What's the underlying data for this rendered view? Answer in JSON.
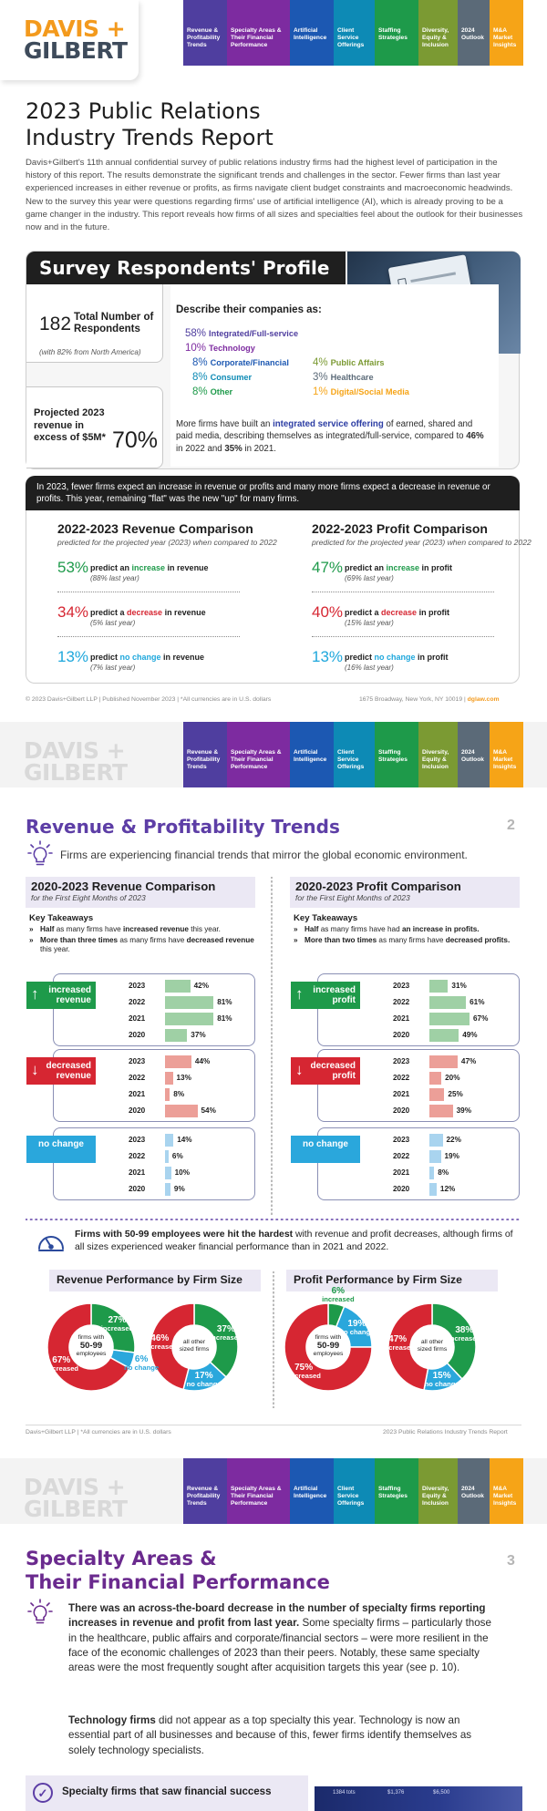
{
  "nav": {
    "logo_line1": "DAVIS +",
    "logo_line2": "GILBERT",
    "tabs": [
      "Revenue & Profitability Trends",
      "Specialty Areas & Their Financial Performance",
      "Artificial Intelligence",
      "Client Service Offerings",
      "Staffing Strategies",
      "Diversity, Equity & Inclusion",
      "2024 Outlook",
      "M&A Market Insights"
    ]
  },
  "page1": {
    "title_line1": "2023 Public Relations",
    "title_line2": "Industry Trends Report",
    "intro": "Davis+Gilbert's 11th annual confidential survey of public relations industry firms had the highest level of participation in the history of this report. The results demonstrate the significant trends and challenges in the sector. Fewer firms than last year experienced increases in either revenue or profits, as firms navigate client budget constraints and macroeconomic headwinds. New to the survey this year were questions regarding firms' use of artificial intelligence (AI), which is already proving to be a game changer in the industry. This report reveals how firms of all sizes and specialties feel about the outlook for their businesses now and in the future.",
    "profile_title": "Survey Respondents' Profile",
    "respondents_num": "182",
    "respondents_label": "Total Number of Respondents",
    "respondents_note": "(with 82% from North America)",
    "revenue_label": "Projected 2023 revenue in excess of $5M*",
    "revenue_pct": "70%",
    "describe_title": "Describe their companies as:",
    "describe": [
      {
        "pct": "58%",
        "label": "Integrated/Full-service",
        "color": "#4f3e9f"
      },
      {
        "pct": "10%",
        "label": "Technology",
        "color": "#7d2ba0"
      },
      {
        "pct": "8%",
        "label": "Corporate/Financial",
        "color": "#1c58b2"
      },
      {
        "pct": "8%",
        "label": "Consumer",
        "color": "#0d8ab5"
      },
      {
        "pct": "8%",
        "label": "Other",
        "color": "#1e9a4a"
      },
      {
        "pct": "4%",
        "label": "Public Affairs",
        "color": "#7b9a33"
      },
      {
        "pct": "3%",
        "label": "Healthcare",
        "color": "#5b6a78"
      },
      {
        "pct": "1%",
        "label": "Digital/Social Media",
        "color": "#f6a417"
      }
    ],
    "desc_body_pre": "More firms have built an ",
    "desc_body_em": "integrated service offering",
    "desc_body_mid": " of earned, shared and paid media, describing themselves as integrated/full-service, compared to ",
    "desc_body_b1": "46%",
    "desc_body_mid2": " in 2022 and ",
    "desc_body_b2": "35%",
    "desc_body_end": " in 2021.",
    "strip": "In 2023, fewer firms expect an increase in revenue or profits and many more firms expect a decrease in revenue or profits. This year, remaining \"flat\" was the new \"up\" for many firms.",
    "rev_comp": {
      "title_pre": "2022-2023 ",
      "title_b": "Revenue",
      "title_post": " Comparison",
      "sub": "predicted for the projected year (2023) when compared to 2022",
      "rows": [
        {
          "pct": "53%",
          "pre": "predict an ",
          "kw": "increase",
          "post": " in revenue",
          "ly": "(88% last year)"
        },
        {
          "pct": "34%",
          "pre": "predict a ",
          "kw": "decrease",
          "post": " in revenue",
          "ly": "(5% last year)"
        },
        {
          "pct": "13%",
          "pre": "predict ",
          "kw": "no change",
          "post": " in revenue",
          "ly": "(7% last year)"
        }
      ]
    },
    "prof_comp": {
      "title_pre": "2022-2023 ",
      "title_b": "Profit",
      "title_post": " Comparison",
      "sub": "predicted for the projected year (2023) when compared to 2022",
      "rows": [
        {
          "pct": "47%",
          "pre": "predict an ",
          "kw": "increase",
          "post": " in profit",
          "ly": "(69% last year)"
        },
        {
          "pct": "40%",
          "pre": "predict a ",
          "kw": "decrease",
          "post": " in profit",
          "ly": "(15% last year)"
        },
        {
          "pct": "13%",
          "pre": "predict ",
          "kw": "no change",
          "post": " in profit",
          "ly": "(16% last year)"
        }
      ]
    },
    "footer_left": "© 2023 Davis+Gilbert LLP  |  Published November 2023  |  *All currencies are in U.S. dollars",
    "footer_right": "1675 Broadway, New York, NY 10019  |  ",
    "footer_link": "dglaw.com"
  },
  "page2": {
    "title": "Revenue & Profitability Trends",
    "page_num": "2",
    "subtitle": "Firms are experiencing financial trends that mirror the global economic environment.",
    "rev": {
      "title_pre": "2020-2023 ",
      "title_b": "Revenue",
      "title_post": " Comparison",
      "sub": "for the First Eight Months of 2023",
      "kt_title": "Key Takeaways",
      "kt1_b": "Half",
      "kt1_a": " as many firms have ",
      "kt1_c": "increased revenue",
      "kt1_d": " this year.",
      "kt2_b": "More than three times",
      "kt2_a": " as many firms have ",
      "kt2_c": "decreased revenue",
      "kt2_d": " this year.",
      "labels": {
        "inc": "increased revenue",
        "dec": "decreased revenue",
        "flat": "no change"
      }
    },
    "prof": {
      "title_pre": "2020-2023 ",
      "title_b": "Profit",
      "title_post": " Comparison",
      "sub": "for the First Eight Months of 2023",
      "kt_title": "Key Takeaways",
      "kt1_b": "Half",
      "kt1_a": " as many firms have had ",
      "kt1_c": "an increase in profits.",
      "kt1_d": "",
      "kt2_b": "More than two times",
      "kt2_a": " as many firms have ",
      "kt2_c": "decreased profits.",
      "kt2_d": "",
      "labels": {
        "inc": "increased profit",
        "dec": "decreased profit",
        "flat": "no change"
      }
    },
    "hardest_b": "Firms with 50-99 employees were hit the hardest",
    "hardest_rest": " with revenue and profit decreases, although firms of all sizes experienced weaker financial performance than in 2021 and 2022.",
    "perf_rev_b": "Revenue",
    "perf_prof_b": "Profit",
    "perf_title_post": " Performance by Firm Size",
    "center_small_pre": "firms with",
    "center_small_b": "50-99",
    "center_small_post": "employees",
    "center_all_pre": "all other",
    "center_all_post": "sized firms",
    "lbl_increased": "increased",
    "lbl_decreased": "decreased",
    "lbl_nochange": "no change",
    "footer_left": "Davis+Gilbert LLP  |  *All currencies are in U.S. dollars",
    "footer_right": "2023 Public Relations Industry Trends Report"
  },
  "chart_data": [
    {
      "type": "bar",
      "title": "2020-2023 Revenue Comparison",
      "categories": [
        "2023",
        "2022",
        "2021",
        "2020"
      ],
      "series": [
        {
          "name": "increased revenue",
          "values": [
            42,
            81,
            81,
            37
          ]
        },
        {
          "name": "decreased revenue",
          "values": [
            44,
            13,
            8,
            54
          ]
        },
        {
          "name": "no change",
          "values": [
            14,
            6,
            10,
            9
          ]
        }
      ],
      "ylim": [
        0,
        100
      ]
    },
    {
      "type": "bar",
      "title": "2020-2023 Profit Comparison",
      "categories": [
        "2023",
        "2022",
        "2021",
        "2020"
      ],
      "series": [
        {
          "name": "increased profit",
          "values": [
            31,
            61,
            67,
            49
          ]
        },
        {
          "name": "decreased profit",
          "values": [
            47,
            20,
            25,
            39
          ]
        },
        {
          "name": "no change",
          "values": [
            22,
            19,
            8,
            12
          ]
        }
      ],
      "ylim": [
        0,
        100
      ]
    },
    {
      "type": "pie",
      "title": "Revenue Performance by Firm Size",
      "charts": [
        {
          "name": "firms with 50-99 employees",
          "slices": [
            {
              "label": "increased",
              "value": 27
            },
            {
              "label": "no change",
              "value": 6
            },
            {
              "label": "decreased",
              "value": 67
            }
          ]
        },
        {
          "name": "all other sized firms",
          "slices": [
            {
              "label": "increased",
              "value": 37
            },
            {
              "label": "no change",
              "value": 17
            },
            {
              "label": "decreased",
              "value": 46
            }
          ]
        }
      ]
    },
    {
      "type": "pie",
      "title": "Profit Performance by Firm Size",
      "charts": [
        {
          "name": "firms with 50-99 employees",
          "slices": [
            {
              "label": "increased",
              "value": 6
            },
            {
              "label": "no change",
              "value": 19
            },
            {
              "label": "decreased",
              "value": 75
            }
          ]
        },
        {
          "name": "all other sized firms",
          "slices": [
            {
              "label": "increased",
              "value": 38
            },
            {
              "label": "no change",
              "value": 15
            },
            {
              "label": "decreased",
              "value": 47
            }
          ]
        }
      ]
    }
  ],
  "page3": {
    "title_line1": "Specialty Areas &",
    "title_line2": "Their Financial Performance",
    "page_num": "3",
    "p1_b": "There was an across-the-board decrease in the number of specialty firms reporting increases in revenue and profit from last year.",
    "p1_rest": " Some specialty firms – particularly those in the healthcare, public affairs and corporate/financial sectors – were more resilient in the face of the economic challenges of 2023 than their peers. Notably, these same specialty areas were the most frequently sought after acquisition targets this year (see p. 10).",
    "p2_b": "Technology firms",
    "p2_rest": " did not appear as a top specialty this year. Technology is now an essential part of all businesses and because of this, fewer firms identify themselves as solely technology specialists.",
    "cta": "Specialty firms that saw financial success",
    "photo_text": [
      "1384 tots",
      "$1,376",
      "$6,500"
    ]
  },
  "colors": {
    "green_bar": "#9fd0a5",
    "red_bar": "#ec9f98",
    "blue_bar": "#a9d4ef",
    "green_box": "#1e9a4a",
    "red_box": "#d62632",
    "blue_box": "#2aa7dc",
    "donut_green": "#1e9a4a",
    "donut_red": "#d62632",
    "donut_blue": "#2aa7dc"
  }
}
